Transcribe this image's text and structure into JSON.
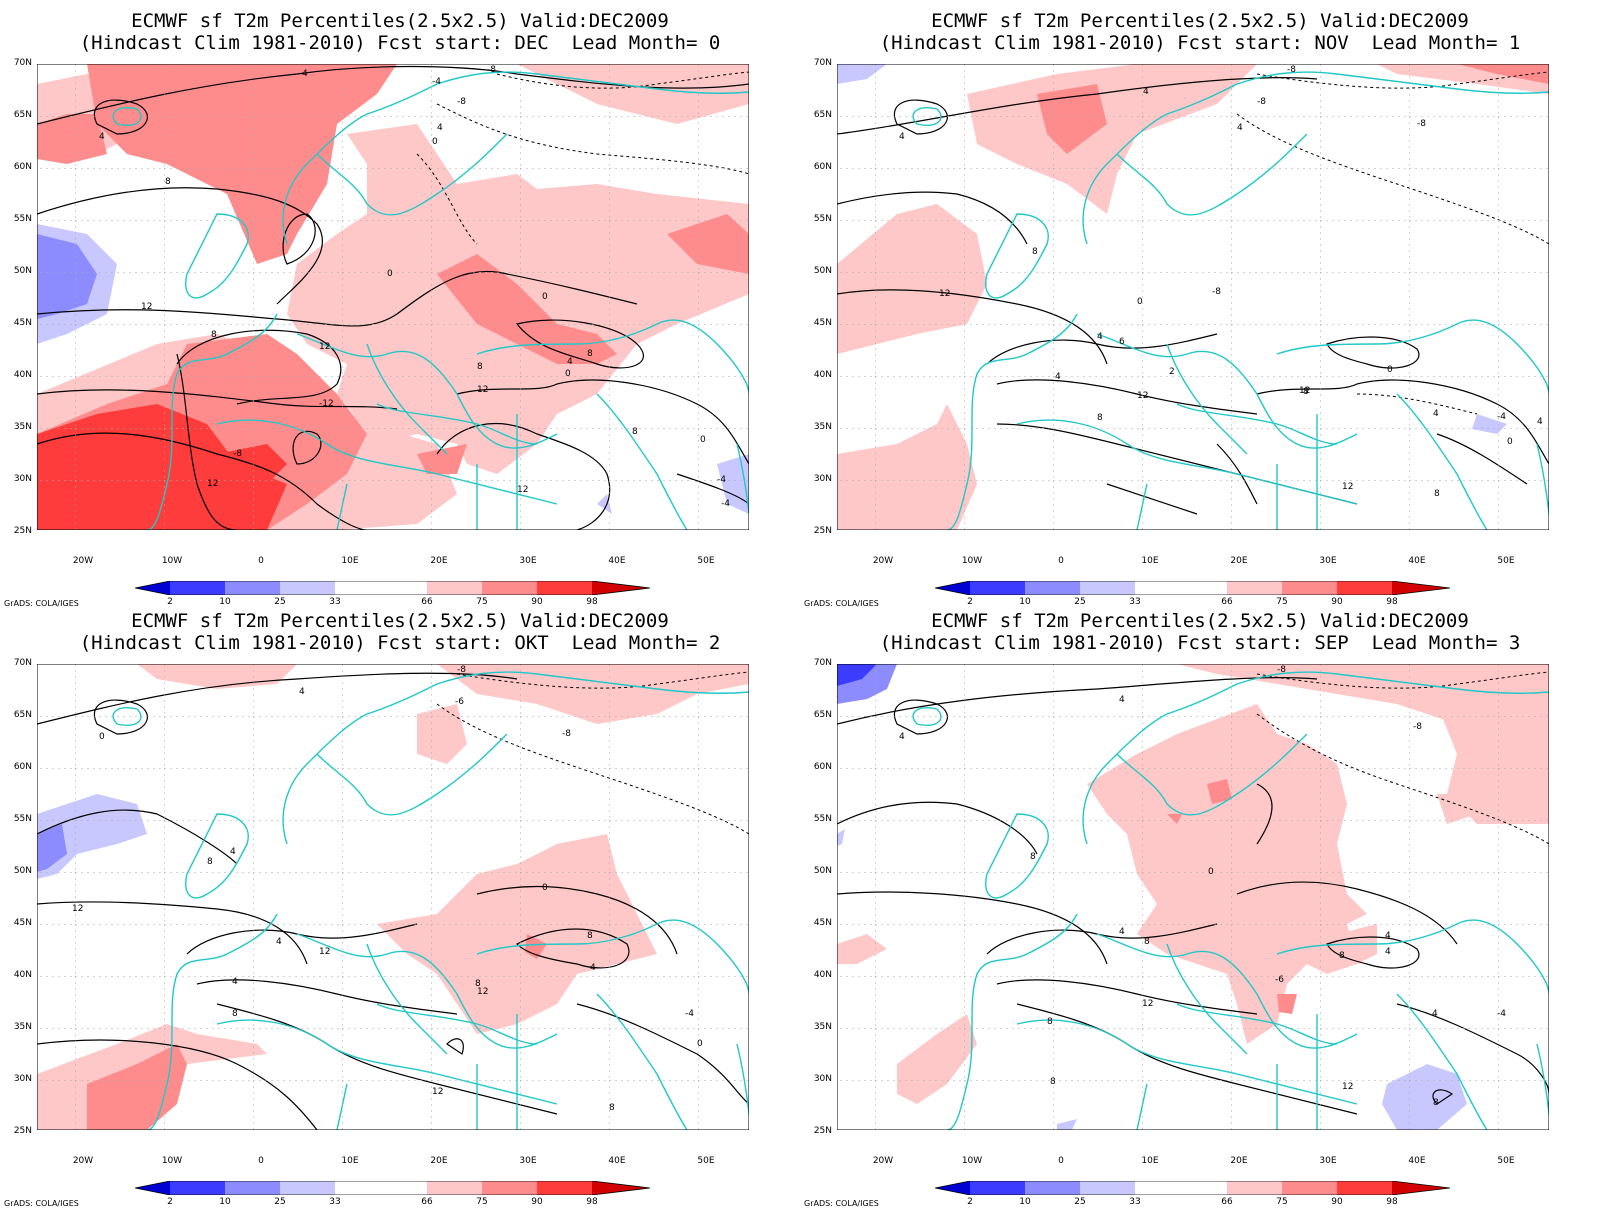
{
  "lat_labels": [
    "70N",
    "65N",
    "60N",
    "55N",
    "50N",
    "45N",
    "40N",
    "35N",
    "30N",
    "25N"
  ],
  "lon_labels": [
    "20W",
    "10W",
    "0",
    "10E",
    "20E",
    "30E",
    "40E",
    "50E"
  ],
  "colorbar": {
    "labels": [
      "2",
      "10",
      "25",
      "33",
      "66",
      "75",
      "90",
      "98"
    ],
    "colors": [
      "#0000d2",
      "#3c3cff",
      "#8c8cff",
      "#c8c8ff",
      "#ffffff",
      "#ffc8c8",
      "#ff8c8c",
      "#ff3c3c",
      "#d20000"
    ]
  },
  "credit": "GrADS: COLA/IGES",
  "panels": [
    {
      "title1": "ECMWF sf T2m Percentiles(2.5x2.5) Valid:DEC2009",
      "title2": "(Hindcast Clim 1981-2010) Fcst start: DEC  Lead Month= 0",
      "contour_labels": [
        "4",
        "-8",
        "-8",
        "4",
        "4",
        "8",
        "0",
        "-4",
        "0",
        "0",
        "12",
        "8",
        "12",
        "-12",
        "8",
        "12",
        "-8",
        "8",
        "4",
        "0",
        "12",
        "8",
        "0",
        "-4",
        "12",
        "-4"
      ]
    },
    {
      "title1": "ECMWF sf T2m Percentiles(2.5x2.5) Valid:DEC2009",
      "title2": "(Hindcast Clim 1981-2010) Fcst start: NOV  Lead Month= 1",
      "contour_labels": [
        "4",
        "-8",
        "-8",
        "4",
        "4",
        "-8",
        "8",
        "12",
        "0",
        "-8",
        "4",
        "6",
        "2",
        "12",
        "8",
        "4",
        "0",
        "8",
        "12",
        "4",
        "-4",
        "8",
        "12",
        "4",
        "0"
      ]
    },
    {
      "title1": "ECMWF sf T2m Percentiles(2.5x2.5) Valid:DEC2009",
      "title2": "(Hindcast Clim 1981-2010) Fcst start: OKT  Lead Month= 2",
      "contour_labels": [
        "4",
        "-8",
        "-6",
        "0",
        "-8",
        "4",
        "8",
        "12",
        "0",
        "4",
        "12",
        "8",
        "4",
        "8",
        "12",
        "8",
        "12",
        "-4",
        "4",
        "0",
        "8"
      ]
    },
    {
      "title1": "ECMWF sf T2m Percentiles(2.5x2.5) Valid:DEC2009",
      "title2": "(Hindcast Clim 1981-2010) Fcst start: SEP  Lead Month= 3",
      "contour_labels": [
        "4",
        "-8",
        "4",
        "-8",
        "0",
        "8",
        "4",
        "8",
        "4",
        "8",
        "12",
        "8",
        "8",
        "4",
        "-4",
        "4",
        "12",
        "-6",
        "8"
      ]
    }
  ]
}
